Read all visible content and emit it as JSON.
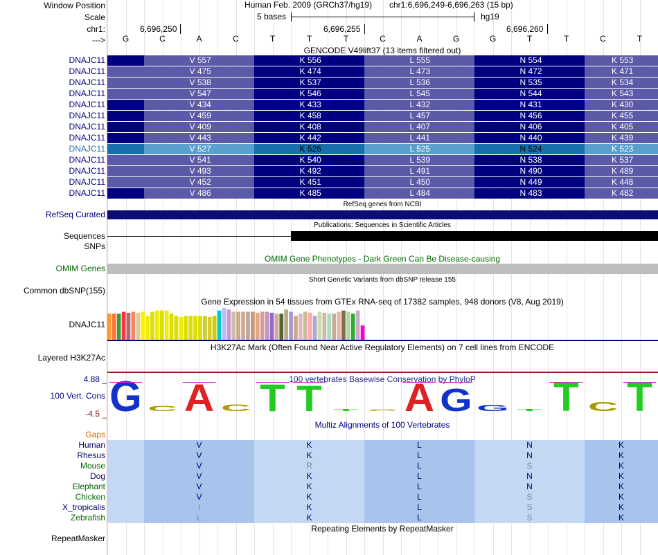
{
  "header": {
    "window_position_label": "Window Position",
    "scale_label": "Scale",
    "chr_label": "chr1:",
    "arrow_label": "--->",
    "assembly_text": "Human Feb. 2009 (GRCh37/hg19)",
    "position_text": "chr1:6,696,249-6,696,263 (15 bp)",
    "scale_text": "5 bases",
    "assembly_short": "hg19",
    "ticks": [
      "6,696,250",
      "6,696,255",
      "6,696,260"
    ],
    "bases": [
      "G",
      "C",
      "A",
      "C",
      "T",
      "T",
      "T",
      "C",
      "A",
      "G",
      "G",
      "T",
      "T",
      "C",
      "T"
    ]
  },
  "gencode": {
    "title": "GENCODE V49lift37 (13 items filtered out)",
    "rows": [
      {
        "name": "DNAJC11",
        "aa": [
          "V 557",
          "K 556",
          "L 555",
          "N 554",
          "K 553"
        ]
      },
      {
        "name": "DNAJC11",
        "aa": [
          "V 475",
          "K 474",
          "L 473",
          "N 472",
          "K 471"
        ]
      },
      {
        "name": "DNAJC11",
        "aa": [
          "V 538",
          "K 537",
          "L 536",
          "N 535",
          "K 534"
        ]
      },
      {
        "name": "DNAJC11",
        "aa": [
          "V 547",
          "K 546",
          "L 545",
          "N 544",
          "K 543"
        ]
      },
      {
        "name": "DNAJC11",
        "aa": [
          "V 434",
          "K 433",
          "L 432",
          "N 431",
          "K 430"
        ]
      },
      {
        "name": "DNAJC11",
        "aa": [
          "V 459",
          "K 458",
          "L 457",
          "N 456",
          "K 455"
        ]
      },
      {
        "name": "DNAJC11",
        "aa": [
          "V 409",
          "K 408",
          "L 407",
          "N 406",
          "K 405"
        ]
      },
      {
        "name": "DNAJC11",
        "aa": [
          "V 443",
          "K 442",
          "L 441",
          "N 440",
          "K 439"
        ]
      },
      {
        "name": "DNAJC11",
        "aa": [
          "V 527",
          "K 526",
          "L 525",
          "N 524",
          "K 523"
        ],
        "highlight": true
      },
      {
        "name": "DNAJC11",
        "aa": [
          "V 541",
          "K 540",
          "L 539",
          "N 538",
          "K 537"
        ]
      },
      {
        "name": "DNAJC11",
        "aa": [
          "V 493",
          "K 492",
          "L 491",
          "N 490",
          "K 489"
        ]
      },
      {
        "name": "DNAJC11",
        "aa": [
          "V 452",
          "K 451",
          "L 450",
          "N 449",
          "K 448"
        ]
      },
      {
        "name": "DNAJC11",
        "aa": [
          "V 486",
          "K 485",
          "L 484",
          "N 483",
          "K 482"
        ]
      }
    ]
  },
  "refseq": {
    "title": "RefSeq genes from NCBI",
    "label": "RefSeq Curated"
  },
  "publications": {
    "title": "Publications: Sequences in Scientific Articles",
    "label": "Sequences"
  },
  "snps": {
    "label": "SNPs"
  },
  "omim": {
    "title": "OMIM Gene Phenotypes - Dark Green Can Be Disease-causing",
    "label": "OMIM Genes"
  },
  "dbsnp": {
    "title": "Short Genetic Variants from dbSNP release 155",
    "label": "Common dbSNP(155)"
  },
  "gtex": {
    "title": "Gene Expression in 54 tissues from GTEx RNA-seq of 17382 samples, 948 donors (V8, Aug 2019)",
    "label": "DNAJC11",
    "bars": [
      0.82,
      0.82,
      0.82,
      0.88,
      0.85,
      0.88,
      0.85,
      0.88,
      0.75,
      0.88,
      0.92,
      0.92,
      0.92,
      0.82,
      0.75,
      0.72,
      0.75,
      0.75,
      0.75,
      0.75,
      0.75,
      0.72,
      0.75,
      0.92,
      1.0,
      0.95,
      0.88,
      0.88,
      0.88,
      0.88,
      0.88,
      0.85,
      0.88,
      0.88,
      0.85,
      0.82,
      0.82,
      0.95,
      0.88,
      0.75,
      0.82,
      0.88,
      0.85,
      0.75,
      0.88,
      0.85,
      0.82,
      0.82,
      0.88,
      0.92,
      0.88,
      0.82,
      0.92,
      0.45
    ],
    "colors": [
      "#ff9933",
      "#ff7733",
      "#3b9c3b",
      "#ff3344",
      "#bb6666",
      "#ee8866",
      "#ddcc99",
      "#ffee00",
      "#eeee00",
      "#dddd00",
      "#eeee00",
      "#dddd00",
      "#eeee00",
      "#dddd00",
      "#dddd00",
      "#eeee00",
      "#dddd00",
      "#dddd00",
      "#dddd00",
      "#dddd00",
      "#cccc33",
      "#ddcc22",
      "#cccc00",
      "#00cccc",
      "#bbbbff",
      "#cc99cc",
      "#ccbbaa",
      "#ccaa88",
      "#ccaa99",
      "#bbaa99",
      "#cc9977",
      "#ddaa88",
      "#dd9999",
      "#bb99bb",
      "#9966cc",
      "#ccaa99",
      "#556633",
      "#bbaa88",
      "#aa99cc",
      "#ccaa88",
      "#ddbbbb",
      "#ccbb99",
      "#ffaaaa",
      "#aaaacc",
      "#ccddaa",
      "#ccbbaa",
      "#aaddbb",
      "#ccaa99",
      "#ddbbaa",
      "#886655",
      "#aadd99",
      "#33aa33",
      "#ccaacc",
      "#ff00cc"
    ]
  },
  "h3k27ac": {
    "title": "H3K27Ac Mark (Often Found Near Active Regulatory Elements) on 7 cell lines from ENCODE",
    "label": "Layered H3K27Ac"
  },
  "conservation": {
    "title": "100 vertebrates Basewise Conservation by PhyloP",
    "label": "100 Vert. Cons",
    "ymax": "4.88 _",
    "ymin": "-4.5 _"
  },
  "multiz": {
    "title": "Multiz Alignments of 100 Vertebrates",
    "gaps_label": "Gaps",
    "species": [
      {
        "name": "Human",
        "aa": [
          "V",
          "K",
          "L",
          "N",
          "K"
        ],
        "color": "#000066"
      },
      {
        "name": "Rhesus",
        "aa": [
          "V",
          "K",
          "L",
          "N",
          "K"
        ],
        "color": "#000066"
      },
      {
        "name": "Mouse",
        "aa": [
          "V",
          "R",
          "L",
          "S",
          "K"
        ],
        "color": "#006600"
      },
      {
        "name": "Dog",
        "aa": [
          "V",
          "K",
          "L",
          "N",
          "K"
        ],
        "color": "#000066"
      },
      {
        "name": "Elephant",
        "aa": [
          "V",
          "K",
          "L",
          "N",
          "K"
        ],
        "color": "#006600"
      },
      {
        "name": "Chicken",
        "aa": [
          "V",
          "K",
          "L",
          "S",
          "K"
        ],
        "color": "#006600"
      },
      {
        "name": "X_tropicalis",
        "aa": [
          "I",
          "K",
          "L",
          "S",
          "K"
        ],
        "color": "#000066"
      },
      {
        "name": "Zebrafish",
        "aa": [
          "L",
          "K",
          "L",
          "S",
          "K"
        ],
        "color": "#006600"
      }
    ]
  },
  "repeatmasker": {
    "title": "Repeating Elements by RepeatMasker",
    "label": "RepeatMasker"
  },
  "colors": {
    "gencode_dark": "#000080",
    "gencode_light": "#5a5aa8",
    "highlight_dark": "#1870aa",
    "highlight_light": "#5aa0cc",
    "label_blue": "#000080",
    "omim_green": "#006600",
    "gaps_orange": "#cc6600"
  }
}
